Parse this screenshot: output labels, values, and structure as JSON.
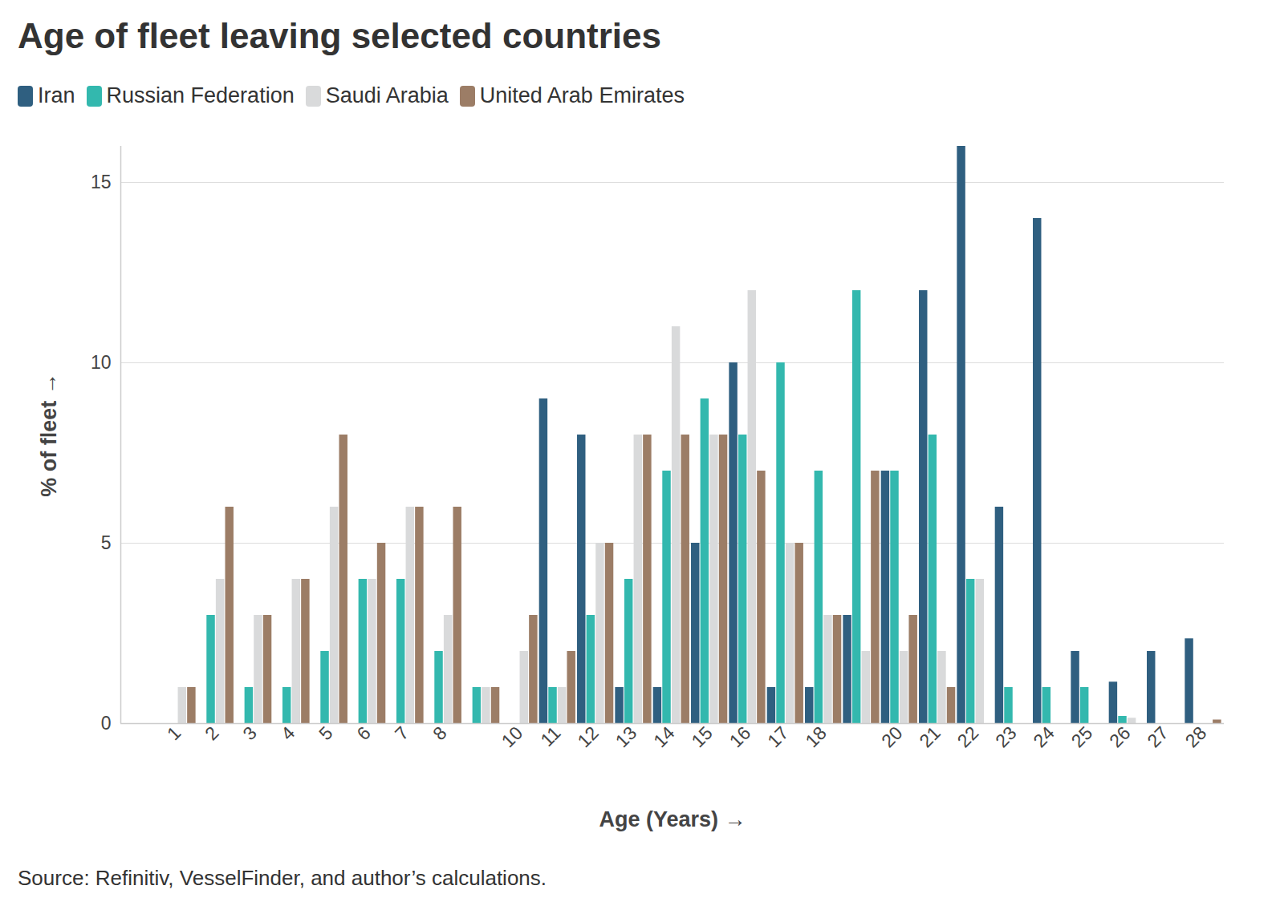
{
  "chart_data": {
    "type": "bar",
    "title": "Age of fleet leaving selected countries",
    "x_label": "Age (Years)",
    "y_label": "% of fleet",
    "caption": "Source: Refinitiv, VesselFinder, and author’s calculations.",
    "categories": [
      "1",
      "2",
      "3",
      "4",
      "5",
      "6",
      "7",
      "8",
      null,
      "10",
      "11",
      "12",
      "13",
      "14",
      "15",
      "16",
      "17",
      "18",
      null,
      "20",
      "21",
      "22",
      "23",
      "24",
      "25",
      "26",
      "27",
      "28"
    ],
    "series": [
      {
        "name": "Iran",
        "color": "#2f5f80",
        "values": [
          0,
          0,
          0,
          0,
          0,
          0,
          0,
          0,
          0,
          0,
          9,
          8,
          1,
          1,
          5,
          10,
          1,
          1,
          3,
          7,
          12,
          16,
          6,
          14,
          2,
          1.15,
          2,
          2.35
        ]
      },
      {
        "name": "Russian Federation",
        "color": "#33b8ae",
        "values": [
          0,
          3,
          1,
          1,
          2,
          4,
          4,
          2,
          1,
          0,
          1,
          3,
          4,
          7,
          9,
          8,
          10,
          7,
          12,
          7,
          8,
          4,
          1,
          1,
          1,
          0.2,
          0,
          0
        ]
      },
      {
        "name": "Saudi Arabia",
        "color": "#d9dadb",
        "values": [
          1,
          4,
          3,
          4,
          6,
          4,
          6,
          3,
          1,
          2,
          1,
          5,
          8,
          11,
          8,
          12,
          5,
          3,
          2,
          2,
          2,
          4,
          0,
          0,
          0,
          0.15,
          0,
          0
        ]
      },
      {
        "name": "United Arab Emirates",
        "color": "#9c7d66",
        "values": [
          1,
          6,
          3,
          4,
          8,
          5,
          6,
          6,
          1,
          3,
          2,
          5,
          8,
          8,
          8,
          7,
          5,
          3,
          7,
          3,
          1,
          0,
          0,
          0,
          0,
          0,
          0,
          0.1
        ]
      }
    ],
    "ylim": [
      0,
      16
    ],
    "yticks": [
      0,
      5,
      10,
      15
    ],
    "grid": true,
    "legend": "top"
  }
}
